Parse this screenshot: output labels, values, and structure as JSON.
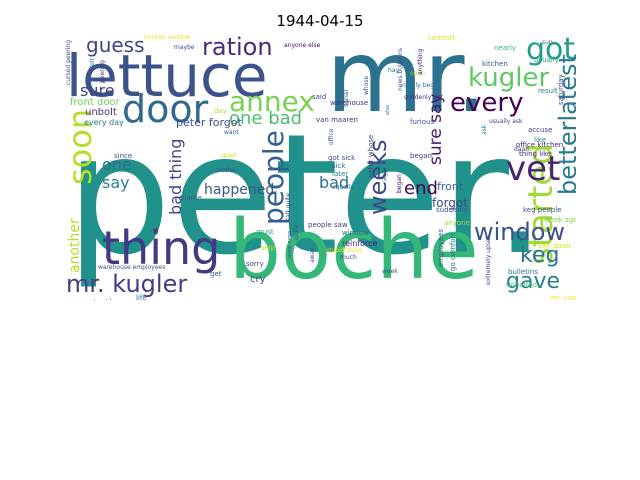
{
  "figure": {
    "title": "1944-04-15"
  },
  "wordcloud": {
    "words": [
      {
        "text": "peter.",
        "color": "#21918c"
      },
      {
        "text": "mr.",
        "color": "#2c728e"
      },
      {
        "text": "boche",
        "color": "#35b779"
      },
      {
        "text": "lettuce",
        "color": "#3b528b"
      },
      {
        "text": "thing",
        "color": "#443983"
      },
      {
        "text": "door",
        "color": "#31688e"
      },
      {
        "text": "annex",
        "color": "#7ad151"
      },
      {
        "text": "ration",
        "color": "#472d7b"
      },
      {
        "text": "got",
        "color": "#1f9e89"
      },
      {
        "text": "kugler",
        "color": "#5ec962"
      },
      {
        "text": "every",
        "color": "#440154"
      },
      {
        "text": "soon",
        "color": "#b5de2b"
      },
      {
        "text": "people",
        "color": "#355f8d"
      },
      {
        "text": "weeks",
        "color": "#3e4989"
      },
      {
        "text": "started",
        "color": "#a0da39"
      },
      {
        "text": "vet",
        "color": "#482475"
      },
      {
        "text": "betterlatest",
        "color": "#287c8e"
      },
      {
        "text": "window",
        "color": "#3b528b"
      },
      {
        "text": "keg",
        "color": "#2a788e"
      },
      {
        "text": "gave",
        "color": "#26828e"
      },
      {
        "text": "mr. kugler",
        "color": "#433e85"
      },
      {
        "text": "guess",
        "color": "#414487"
      },
      {
        "text": "one bad",
        "color": "#4ac16d"
      },
      {
        "text": "sure say",
        "color": "#481a6c"
      },
      {
        "text": "sure",
        "color": "#3f4788"
      },
      {
        "text": "one",
        "color": "#2e6e8e"
      },
      {
        "text": "say",
        "color": "#25848e"
      },
      {
        "text": "bad thing",
        "color": "#404688"
      },
      {
        "text": "bad",
        "color": "#2d708e"
      },
      {
        "text": "end",
        "color": "#450559"
      },
      {
        "text": "happened",
        "color": "#38598c"
      },
      {
        "text": "another",
        "color": "#b8de29"
      },
      {
        "text": "forgot",
        "color": "#3e4a89"
      },
      {
        "text": "front",
        "color": "#2f6b8e"
      },
      {
        "text": "suddenly",
        "color": "#3c508b"
      },
      {
        "text": "peter forgot",
        "color": "#3d4d8a"
      },
      {
        "text": "front door",
        "color": "#6ece58"
      },
      {
        "text": "unbolt",
        "color": "#46337f"
      },
      {
        "text": "every day",
        "color": "#2a768e"
      },
      {
        "text": "nearly",
        "color": "#31b57b"
      },
      {
        "text": "kitchen",
        "color": "#3a548c"
      },
      {
        "text": "usually",
        "color": "#20a486"
      },
      {
        "text": "result",
        "color": "#25838e"
      },
      {
        "text": "saturday",
        "color": "#3f4889"
      },
      {
        "text": "office kitchen",
        "color": "#472a7a"
      },
      {
        "text": "thing like",
        "color": "#482878"
      },
      {
        "text": "keg people",
        "color": "#3d4e8a"
      },
      {
        "text": "week ago",
        "color": "#7fd34e"
      },
      {
        "text": "mr. van",
        "color": "#fde725"
      },
      {
        "text": "van daan",
        "color": "#dde318"
      },
      {
        "text": "bulletins",
        "color": "#2c718e"
      },
      {
        "text": "unbolted",
        "color": "#4ac16d"
      },
      {
        "text": "accuse",
        "color": "#423f85"
      },
      {
        "text": "like",
        "color": "#277f8e"
      },
      {
        "text": "daan",
        "color": "#46327e"
      },
      {
        "text": "employees",
        "color": "#365c8d"
      },
      {
        "text": "extremely upset",
        "color": "#3b518b"
      },
      {
        "text": "go comfort",
        "color": "#2e6f8e"
      },
      {
        "text": "anyone",
        "color": "#95d840"
      },
      {
        "text": "began",
        "color": "#453781"
      },
      {
        "text": "later",
        "color": "#27808e"
      },
      {
        "text": "got sick",
        "color": "#3f4788"
      },
      {
        "text": "sick",
        "color": "#2b758e"
      },
      {
        "text": "warehouse",
        "color": "#472e7c"
      },
      {
        "text": "furious",
        "color": "#3a538b"
      },
      {
        "text": "peter whose",
        "color": "#404588"
      },
      {
        "text": "van maaren",
        "color": "#46307e"
      },
      {
        "text": "week",
        "color": "#3d4d8a"
      },
      {
        "text": "reinforce",
        "color": "#482173"
      },
      {
        "text": "window",
        "color": "#2f6c8e"
      },
      {
        "text": "people saw",
        "color": "#414287"
      },
      {
        "text": "stupid thing",
        "color": "#ecE51b"
      },
      {
        "text": "much",
        "color": "#3e4989"
      },
      {
        "text": "ago",
        "color": "#355e8d"
      },
      {
        "text": "cry",
        "color": "#3a548c"
      },
      {
        "text": "sorry",
        "color": "#443b84"
      },
      {
        "text": "must",
        "color": "#1fa088"
      },
      {
        "text": "help",
        "color": "#c2df23"
      },
      {
        "text": "get",
        "color": "#38588c"
      },
      {
        "text": "mother",
        "color": "#3c4f8a"
      },
      {
        "text": "life",
        "color": "#2d708e"
      },
      {
        "text": "extremely",
        "color": "#433d84"
      },
      {
        "text": "stupid",
        "color": "#482576"
      },
      {
        "text": "table",
        "color": "#2f6b8e"
      },
      {
        "text": "mother said",
        "color": "#424086"
      },
      {
        "text": "warehouse employees",
        "color": "#3b528b"
      },
      {
        "text": "since",
        "color": "#404588"
      },
      {
        "text": "blame",
        "color": "#365d8d"
      },
      {
        "text": "upset",
        "color": "#cde11d"
      },
      {
        "text": "want",
        "color": "#33628d"
      },
      {
        "text": "day",
        "color": "#b2dd2d"
      },
      {
        "text": "maybe",
        "color": "#3f4788"
      },
      {
        "text": "kitchen window",
        "color": "#ecE51b"
      },
      {
        "text": "anyone else",
        "color": "#46085c"
      },
      {
        "text": "said",
        "color": "#3e4c8a"
      },
      {
        "text": "felt",
        "color": "#2a788e"
      },
      {
        "text": "comfort",
        "color": "#e2e418"
      },
      {
        "text": "sun",
        "color": "#2e6d8e"
      },
      {
        "text": "open",
        "color": "#a8db34"
      },
      {
        "text": "ask",
        "color": "#23898e"
      },
      {
        "text": "usually ask",
        "color": "#433e85"
      },
      {
        "text": "began",
        "color": "#460a5d"
      },
      {
        "text": "social",
        "color": "#3b518b"
      },
      {
        "text": "hay",
        "color": "#2c728e"
      },
      {
        "text": "whose",
        "color": "#3d4e8a"
      },
      {
        "text": "quite",
        "color": "#38588c"
      },
      {
        "text": "salt quite",
        "color": "#453882"
      },
      {
        "text": "cursed peering",
        "color": "#3e4a89"
      },
      {
        "text": "peering",
        "color": "#443a83"
      },
      {
        "text": "equally",
        "color": "#2e6e8e"
      },
      {
        "text": "office",
        "color": "#31678e"
      },
      {
        "text": "news bulletins",
        "color": "#3a548c"
      },
      {
        "text": "nearly began",
        "color": "#2b748e"
      },
      {
        "text": "suddenly got",
        "color": "#46327e"
      },
      {
        "text": "latest news",
        "color": "#3d4d8a"
      },
      {
        "text": "anything",
        "color": "#482071"
      },
      {
        "text": "else",
        "color": "#2a778e"
      },
      {
        "text": "away",
        "color": "#3c4f8a"
      }
    ]
  }
}
